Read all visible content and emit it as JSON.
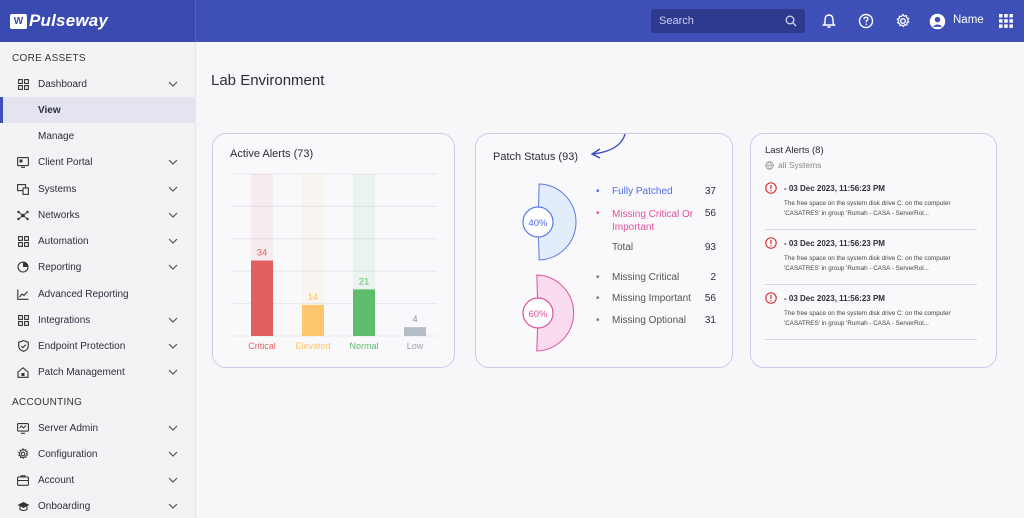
{
  "app": {
    "logo": "Pulseway"
  },
  "topbar": {
    "search_placeholder": "Search",
    "user_name": "Name"
  },
  "sidebar": {
    "core_assets_label": "CORE ASSETS",
    "accounting_label": "ACCOUNTING",
    "items": [
      {
        "label": "Dashboard",
        "icon": "grid-icon"
      },
      {
        "label": "View"
      },
      {
        "label": "Manage"
      },
      {
        "label": "Client Portal",
        "icon": "portal-icon"
      },
      {
        "label": "Systems",
        "icon": "systems-icon"
      },
      {
        "label": "Networks",
        "icon": "network-icon"
      },
      {
        "label": "Automation",
        "icon": "grid-icon"
      },
      {
        "label": "Reporting",
        "icon": "pie-chart-icon"
      },
      {
        "label": "Advanced Reporting",
        "icon": "line-chart-icon"
      },
      {
        "label": "Integrations",
        "icon": "grid-icon"
      },
      {
        "label": "Endpoint Protection",
        "icon": "shield-icon"
      },
      {
        "label": "Patch Management",
        "icon": "patch-icon"
      }
    ],
    "accounting_items": [
      {
        "label": "Server Admin",
        "icon": "monitor-icon"
      },
      {
        "label": "Configuration",
        "icon": "gear-icon"
      },
      {
        "label": "Account",
        "icon": "account-icon"
      },
      {
        "label": "Onboarding",
        "icon": "graduation-icon"
      }
    ]
  },
  "main": {
    "title": "Lab Environment"
  },
  "active_alerts": {
    "title": "Active Alerts (73)",
    "colors": {
      "Critical": "#e0605f",
      "Elevated": "#fbc66d",
      "Normal": "#5fbd6e",
      "Low": "#b4bcc6"
    }
  },
  "patch_status": {
    "title": "Patch Status (93)",
    "gauge1_label": "40%",
    "gauge1_value": 0.4,
    "gauge2_label": "60%",
    "gauge2_value": 0.6,
    "summary": [
      {
        "label": "Fully Patched",
        "value": "37",
        "color": "#4f6ae8"
      },
      {
        "label": "Missing Critical Or Important",
        "value": "56",
        "color": "#e04f9e"
      },
      {
        "label": "Total",
        "value": "93",
        "color": "#555"
      }
    ],
    "missing": [
      {
        "label": "Missing Critical",
        "value": "2"
      },
      {
        "label": "Missing Important",
        "value": "56"
      },
      {
        "label": "Missing Optional",
        "value": "31"
      }
    ]
  },
  "last_alerts": {
    "title": "Last Alerts (8)",
    "subtitle": "all Systems",
    "items": [
      {
        "date": "- 03 Dec 2023, 11:56:23 PM",
        "message": "The free space on the system disk drive C: on the computer 'CASATRES' in group 'Rumah - CASA - ServerRol..."
      },
      {
        "date": "- 03 Dec 2023, 11:56:23 PM",
        "message": "The free space on the system disk drive C: on the computer 'CASATRES' in group 'Rumah - CASA - ServerRol..."
      },
      {
        "date": "- 03 Dec 2023, 11:56:23 PM",
        "message": "The free space on the system disk drive C: on the computer 'CASATRES' in group 'Rumah - CASA - ServerRol..."
      }
    ]
  },
  "chart_data": {
    "type": "bar",
    "title": "Active Alerts (73)",
    "categories": [
      "Critical",
      "Elevated",
      "Normal",
      "Low"
    ],
    "values": [
      34,
      14,
      21,
      4
    ],
    "xlabel": "",
    "ylabel": "",
    "ylim": [
      0,
      73
    ],
    "grid": true,
    "legend": "none"
  }
}
